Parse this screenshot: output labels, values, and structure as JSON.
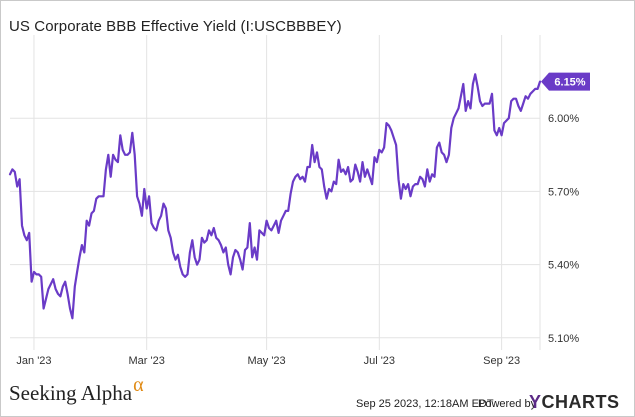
{
  "title": "US Corporate BBB Effective Yield (I:USCBBBEY)",
  "footer": {
    "logo_text": "Seeking Alpha",
    "logo_symbol": "α",
    "timestamp": "Sep 25 2023, 12:18AM EDT.",
    "powered_by": "Powered by",
    "brand_y": "Y",
    "brand_rest": "CHARTS"
  },
  "colors": {
    "line": "#6a3bc7",
    "badge": "#6a3bc7",
    "grid": "#e3e3e3"
  },
  "chart_data": {
    "type": "line",
    "title": "US Corporate BBB Effective Yield (I:USCBBBEY)",
    "xlabel": "",
    "ylabel": "",
    "ylim": [
      5.05,
      6.3
    ],
    "y_ticks": [
      5.1,
      5.4,
      5.7,
      6.0
    ],
    "y_tick_labels": [
      "5.10%",
      "5.40%",
      "5.70%",
      "6.00%"
    ],
    "x_ticks": [
      {
        "label": "Jan '23",
        "date_index": 10
      },
      {
        "label": "Mar '23",
        "date_index": 57
      },
      {
        "label": "May '23",
        "date_index": 107
      },
      {
        "label": "Jul '23",
        "date_index": 154
      },
      {
        "label": "Sep '23",
        "date_index": 205
      }
    ],
    "x_range": [
      0,
      221
    ],
    "last_value_label": "6.15%",
    "series": [
      {
        "name": "US Corporate BBB Effective Yield",
        "x": [
          0,
          1,
          2,
          3,
          4,
          5,
          6,
          7,
          8,
          9,
          10,
          11,
          12,
          13,
          14,
          15,
          16,
          17,
          18,
          19,
          20,
          21,
          22,
          23,
          24,
          25,
          26,
          27,
          28,
          29,
          30,
          31,
          32,
          33,
          34,
          35,
          36,
          37,
          38,
          39,
          40,
          41,
          42,
          43,
          44,
          45,
          46,
          47,
          48,
          49,
          50,
          51,
          52,
          53,
          54,
          55,
          56,
          57,
          58,
          59,
          60,
          61,
          62,
          63,
          64,
          65,
          66,
          67,
          68,
          69,
          70,
          71,
          72,
          73,
          74,
          75,
          76,
          77,
          78,
          79,
          80,
          81,
          82,
          83,
          84,
          85,
          86,
          87,
          88,
          89,
          90,
          91,
          92,
          93,
          94,
          95,
          96,
          97,
          98,
          99,
          100,
          101,
          102,
          103,
          104,
          105,
          106,
          107,
          108,
          109,
          110,
          111,
          112,
          113,
          114,
          115,
          116,
          117,
          118,
          119,
          120,
          121,
          122,
          123,
          124,
          125,
          126,
          127,
          128,
          129,
          130,
          131,
          132,
          133,
          134,
          135,
          136,
          137,
          138,
          139,
          140,
          141,
          142,
          143,
          144,
          145,
          146,
          147,
          148,
          149,
          150,
          151,
          152,
          153,
          154,
          155,
          156,
          157,
          158,
          159,
          160,
          161,
          162,
          163,
          164,
          165,
          166,
          167,
          168,
          169,
          170,
          171,
          172,
          173,
          174,
          175,
          176,
          177,
          178,
          179,
          180,
          181,
          182,
          183,
          184,
          185,
          186,
          187,
          188,
          189,
          190,
          191,
          192,
          193,
          194,
          195,
          196,
          197,
          198,
          199,
          200,
          201,
          202,
          203,
          204,
          205,
          206,
          207,
          208,
          209,
          210,
          211,
          212,
          213,
          214,
          215,
          216,
          217,
          218,
          219,
          220,
          221
        ],
        "values": [
          5.77,
          5.79,
          5.78,
          5.72,
          5.75,
          5.56,
          5.52,
          5.5,
          5.53,
          5.33,
          5.37,
          5.36,
          5.36,
          5.35,
          5.22,
          5.26,
          5.3,
          5.32,
          5.34,
          5.3,
          5.28,
          5.27,
          5.31,
          5.33,
          5.28,
          5.22,
          5.18,
          5.31,
          5.37,
          5.43,
          5.48,
          5.45,
          5.58,
          5.56,
          5.61,
          5.62,
          5.67,
          5.68,
          5.68,
          5.68,
          5.79,
          5.85,
          5.76,
          5.85,
          5.83,
          5.82,
          5.93,
          5.87,
          5.85,
          5.85,
          5.86,
          5.94,
          5.85,
          5.68,
          5.65,
          5.6,
          5.71,
          5.63,
          5.68,
          5.57,
          5.55,
          5.54,
          5.58,
          5.6,
          5.65,
          5.63,
          5.54,
          5.51,
          5.45,
          5.42,
          5.44,
          5.39,
          5.36,
          5.35,
          5.36,
          5.45,
          5.5,
          5.43,
          5.4,
          5.42,
          5.51,
          5.49,
          5.5,
          5.54,
          5.52,
          5.55,
          5.51,
          5.5,
          5.48,
          5.45,
          5.47,
          5.4,
          5.36,
          5.43,
          5.46,
          5.45,
          5.42,
          5.38,
          5.46,
          5.47,
          5.57,
          5.43,
          5.47,
          5.42,
          5.54,
          5.53,
          5.52,
          5.58,
          5.55,
          5.54,
          5.56,
          5.58,
          5.53,
          5.58,
          5.6,
          5.62,
          5.62,
          5.69,
          5.74,
          5.76,
          5.77,
          5.75,
          5.76,
          5.74,
          5.8,
          5.8,
          5.89,
          5.82,
          5.86,
          5.8,
          5.79,
          5.72,
          5.67,
          5.71,
          5.7,
          5.74,
          5.73,
          5.83,
          5.78,
          5.79,
          5.77,
          5.8,
          5.74,
          5.75,
          5.81,
          5.78,
          5.74,
          5.82,
          5.76,
          5.79,
          5.76,
          5.73,
          5.84,
          5.82,
          5.87,
          5.86,
          5.88,
          5.98,
          5.97,
          5.95,
          5.92,
          5.89,
          5.75,
          5.67,
          5.73,
          5.71,
          5.73,
          5.68,
          5.72,
          5.73,
          5.73,
          5.76,
          5.75,
          5.72,
          5.79,
          5.74,
          5.77,
          5.76,
          5.88,
          5.9,
          5.86,
          5.85,
          5.82,
          5.85,
          5.96,
          6.0,
          6.02,
          6.04,
          6.09,
          6.14,
          6.03,
          6.07,
          6.04,
          6.14,
          6.18,
          6.13,
          6.07,
          6.05,
          6.06,
          6.06,
          6.06,
          6.1,
          5.95,
          5.93,
          5.96,
          5.93,
          5.98,
          5.99,
          6.0,
          6.07,
          6.08,
          6.08,
          6.05,
          6.03,
          6.06,
          6.09,
          6.08,
          6.1,
          6.11,
          6.12,
          6.12,
          6.15
        ]
      }
    ]
  }
}
